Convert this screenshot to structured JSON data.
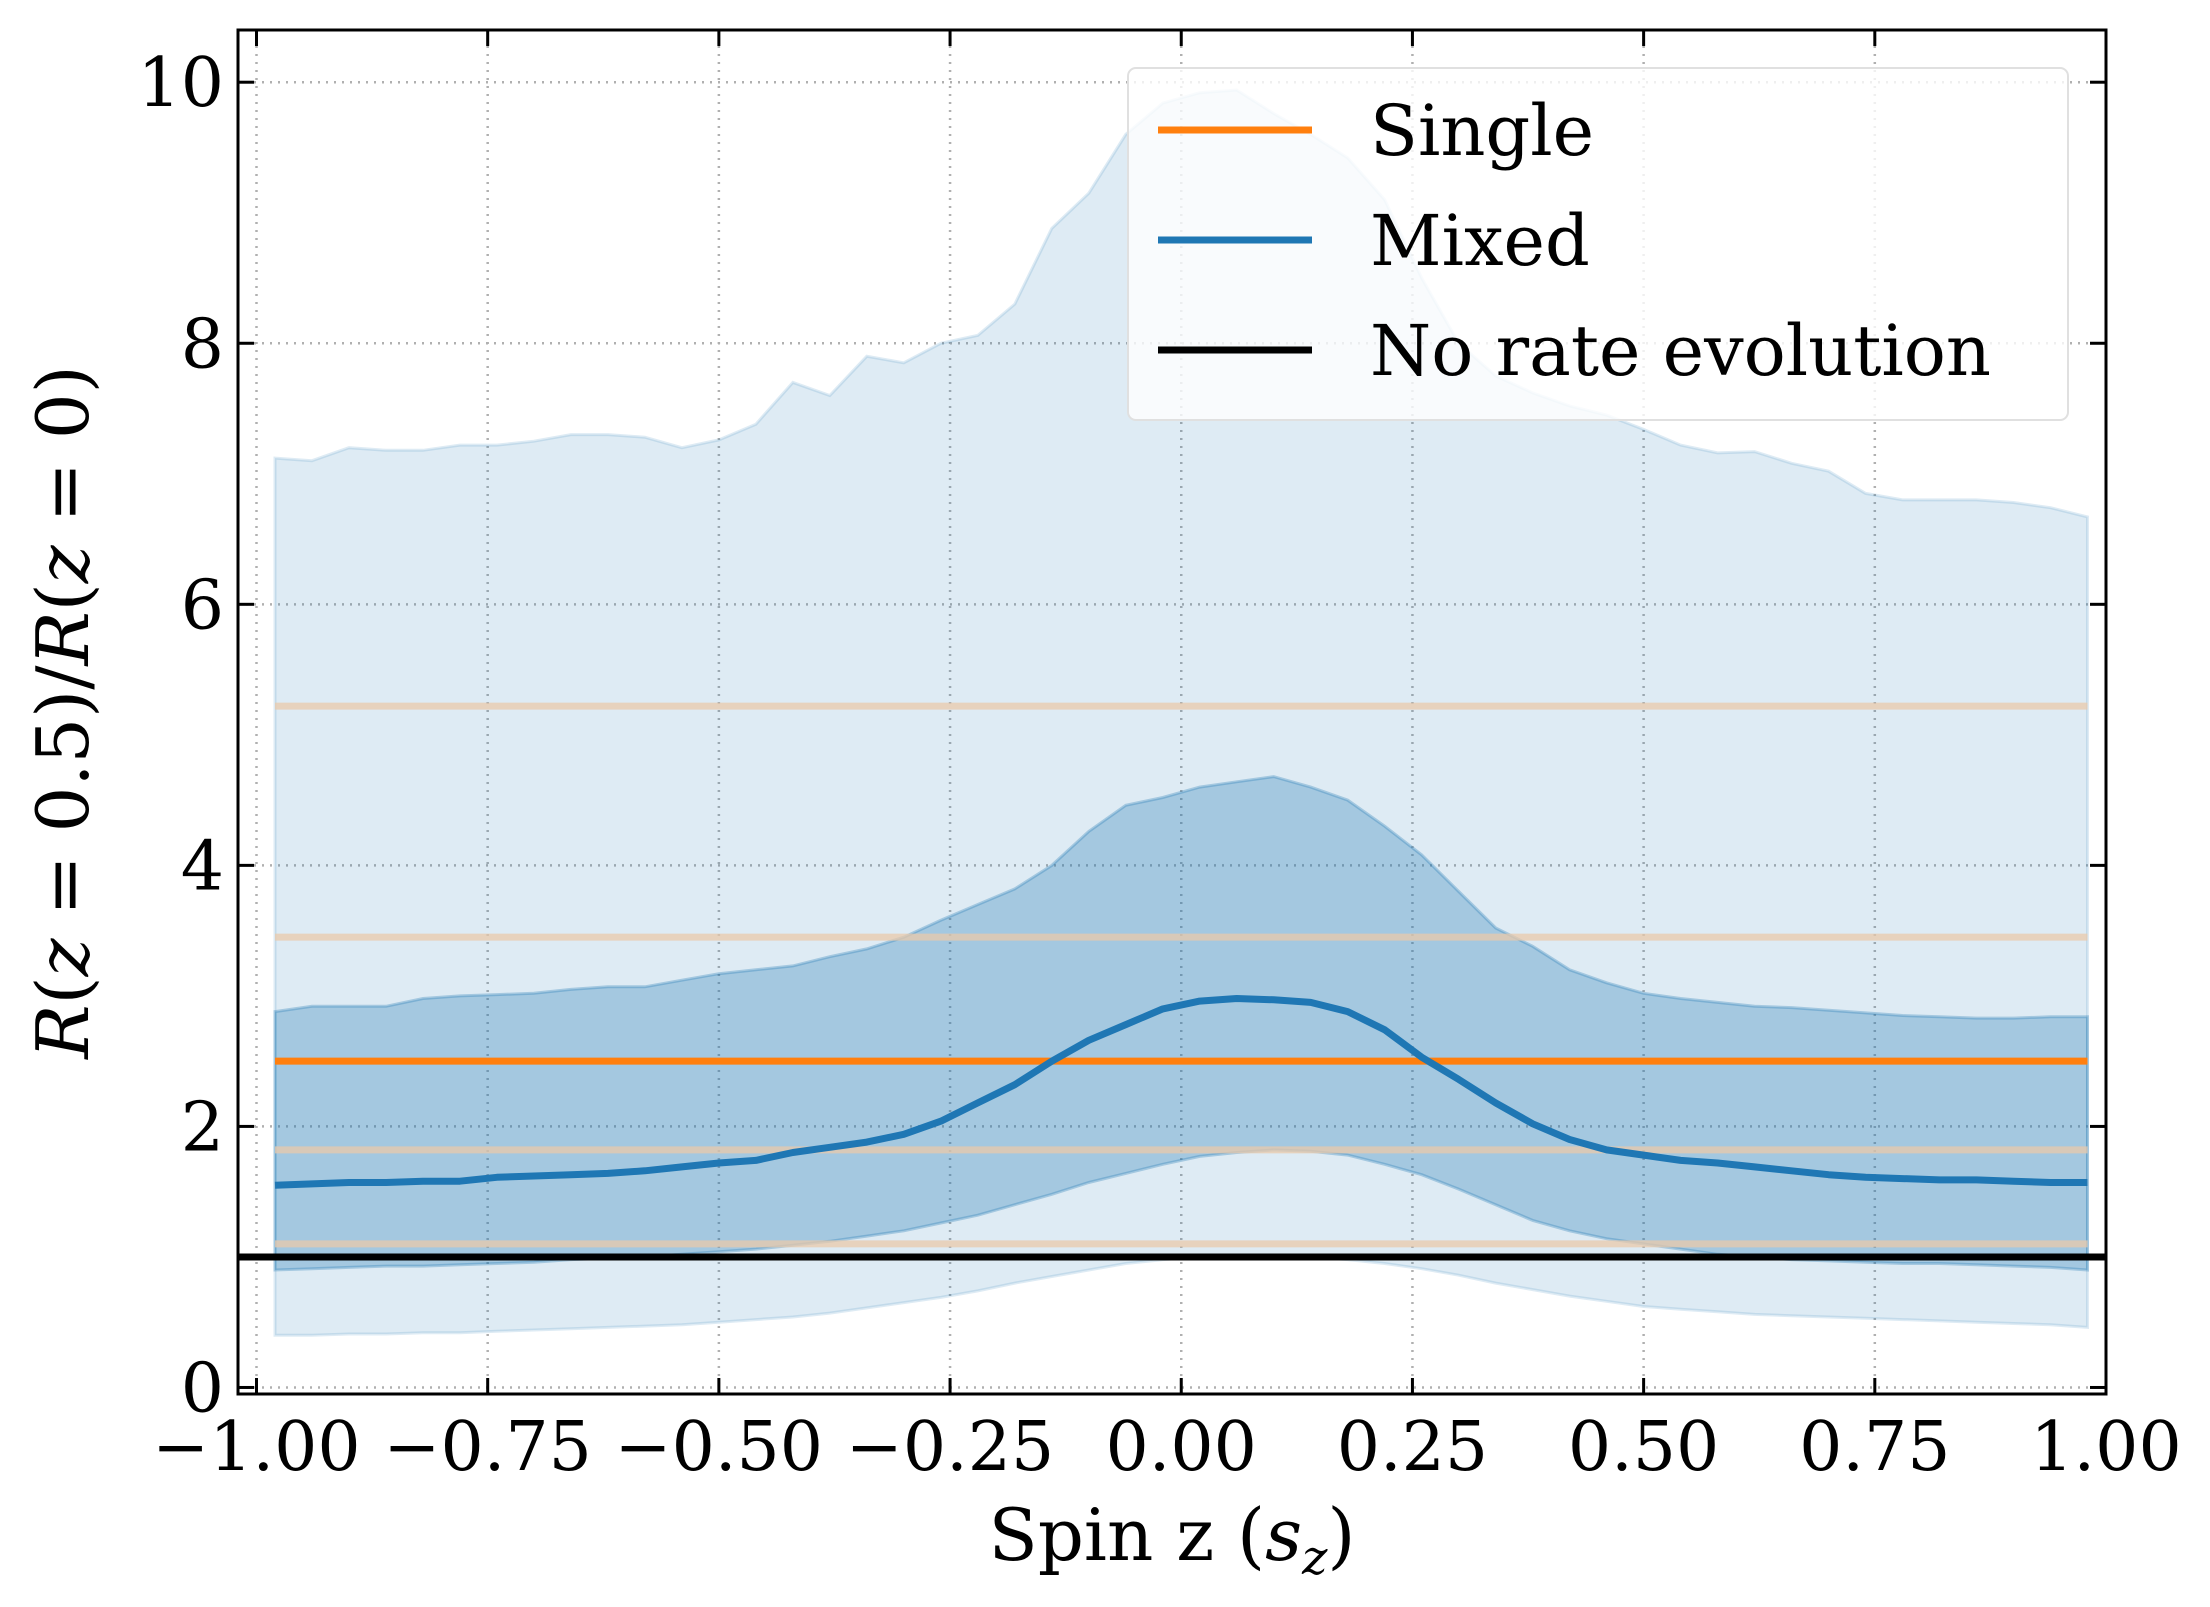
{
  "chart_data": {
    "type": "line",
    "xlabel": "Spin z (s_z)",
    "ylabel": "R(z=0.5)/R(z=0)",
    "xlim": [
      -1.02,
      1.0
    ],
    "ylim": [
      -0.05,
      10.4
    ],
    "x_ticks": [
      -1.0,
      -0.75,
      -0.5,
      -0.25,
      0.0,
      0.25,
      0.5,
      0.75,
      1.0
    ],
    "x_tick_labels": [
      "−1.00",
      "−0.75",
      "−0.50",
      "−0.25",
      "0.00",
      "0.25",
      "0.50",
      "0.75",
      "1.00"
    ],
    "y_ticks": [
      0,
      2,
      4,
      6,
      8,
      10
    ],
    "y_tick_labels": [
      "0",
      "2",
      "4",
      "6",
      "8",
      "10"
    ],
    "grid": true,
    "legend_position": "top-right",
    "x": [
      -0.98,
      -0.94,
      -0.9,
      -0.86,
      -0.82,
      -0.78,
      -0.74,
      -0.7,
      -0.66,
      -0.62,
      -0.58,
      -0.54,
      -0.5,
      -0.46,
      -0.42,
      -0.38,
      -0.34,
      -0.3,
      -0.26,
      -0.22,
      -0.18,
      -0.14,
      -0.1,
      -0.06,
      -0.02,
      0.02,
      0.06,
      0.1,
      0.14,
      0.18,
      0.22,
      0.26,
      0.3,
      0.34,
      0.38,
      0.42,
      0.46,
      0.5,
      0.54,
      0.58,
      0.62,
      0.66,
      0.7,
      0.74,
      0.78,
      0.82,
      0.86,
      0.9,
      0.94,
      0.98
    ],
    "series": [
      {
        "name": "Mixed",
        "color": "#1f77b4",
        "median": [
          1.55,
          1.56,
          1.57,
          1.57,
          1.58,
          1.58,
          1.61,
          1.62,
          1.63,
          1.64,
          1.66,
          1.69,
          1.72,
          1.74,
          1.8,
          1.84,
          1.88,
          1.94,
          2.04,
          2.18,
          2.32,
          2.5,
          2.66,
          2.78,
          2.9,
          2.96,
          2.98,
          2.97,
          2.95,
          2.88,
          2.74,
          2.53,
          2.36,
          2.18,
          2.02,
          1.9,
          1.82,
          1.78,
          1.74,
          1.72,
          1.69,
          1.66,
          1.63,
          1.61,
          1.6,
          1.59,
          1.59,
          1.58,
          1.57,
          1.57
        ],
        "band_inner_low": [
          0.9,
          0.91,
          0.92,
          0.93,
          0.93,
          0.94,
          0.95,
          0.96,
          0.98,
          0.99,
          1.0,
          1.02,
          1.04,
          1.06,
          1.09,
          1.12,
          1.16,
          1.2,
          1.26,
          1.32,
          1.4,
          1.48,
          1.57,
          1.64,
          1.71,
          1.77,
          1.8,
          1.82,
          1.81,
          1.78,
          1.71,
          1.63,
          1.52,
          1.4,
          1.28,
          1.2,
          1.14,
          1.1,
          1.06,
          1.02,
          1.0,
          0.98,
          0.97,
          0.96,
          0.95,
          0.95,
          0.94,
          0.93,
          0.92,
          0.9
        ],
        "band_inner_high": [
          2.88,
          2.92,
          2.92,
          2.92,
          2.98,
          3.0,
          3.01,
          3.02,
          3.05,
          3.07,
          3.07,
          3.12,
          3.17,
          3.2,
          3.23,
          3.3,
          3.36,
          3.45,
          3.58,
          3.7,
          3.82,
          4.0,
          4.26,
          4.46,
          4.52,
          4.6,
          4.64,
          4.68,
          4.6,
          4.5,
          4.3,
          4.08,
          3.8,
          3.52,
          3.38,
          3.2,
          3.1,
          3.02,
          2.98,
          2.95,
          2.92,
          2.91,
          2.89,
          2.87,
          2.85,
          2.84,
          2.83,
          2.83,
          2.84,
          2.84
        ],
        "band_outer_low": [
          0.4,
          0.4,
          0.41,
          0.41,
          0.42,
          0.42,
          0.43,
          0.44,
          0.45,
          0.46,
          0.47,
          0.48,
          0.5,
          0.52,
          0.54,
          0.57,
          0.61,
          0.65,
          0.69,
          0.74,
          0.8,
          0.85,
          0.9,
          0.95,
          0.98,
          1.0,
          1.01,
          1.01,
          1.0,
          0.98,
          0.95,
          0.91,
          0.86,
          0.8,
          0.75,
          0.7,
          0.66,
          0.62,
          0.6,
          0.58,
          0.56,
          0.55,
          0.54,
          0.53,
          0.52,
          0.51,
          0.5,
          0.49,
          0.48,
          0.46
        ],
        "band_outer_high": [
          7.12,
          7.1,
          7.2,
          7.18,
          7.18,
          7.22,
          7.22,
          7.25,
          7.3,
          7.3,
          7.28,
          7.2,
          7.26,
          7.38,
          7.7,
          7.6,
          7.9,
          7.85,
          8.0,
          8.06,
          8.3,
          8.88,
          9.15,
          9.6,
          9.84,
          9.92,
          9.94,
          9.76,
          9.6,
          9.42,
          9.1,
          8.5,
          8.0,
          7.75,
          7.62,
          7.52,
          7.45,
          7.34,
          7.22,
          7.16,
          7.17,
          7.08,
          7.02,
          6.85,
          6.8,
          6.8,
          6.8,
          6.78,
          6.74,
          6.67
        ]
      },
      {
        "name": "Single",
        "color": "#ff7f0e",
        "median": 2.5,
        "band_color": "#e9c9ab",
        "band_lines": [
          1.1,
          1.82,
          3.45,
          5.22
        ]
      },
      {
        "name": "No rate evolution",
        "color": "#000000",
        "value": 1.0
      }
    ],
    "legend": [
      "Single",
      "Mixed",
      "No rate evolution"
    ]
  }
}
